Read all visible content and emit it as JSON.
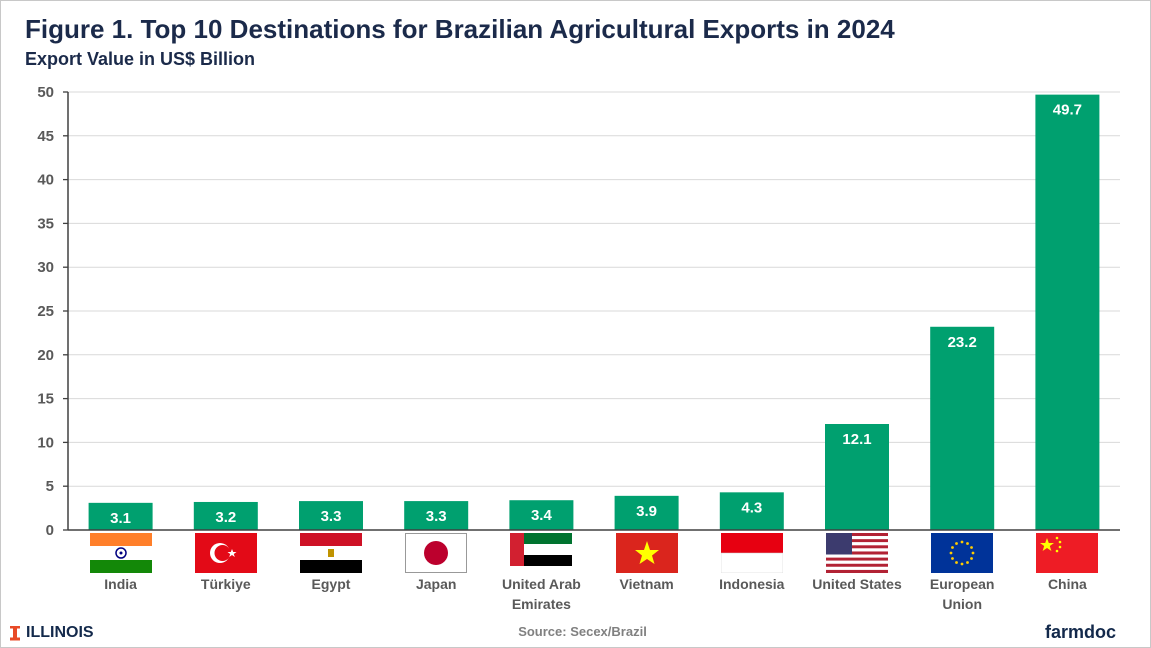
{
  "title": "Figure 1. Top 10 Destinations for Brazilian Agricultural Exports in 2024",
  "subtitle": "Export Value in US$ Billion",
  "source": "Source: Secex/Brazil",
  "logo_left": "ILLINOIS",
  "logo_right": "farmdoc",
  "colors": {
    "bar": "#00a06f",
    "title": "#1b2a4a",
    "grid": "#d9d9d9"
  },
  "chart_data": {
    "type": "bar",
    "title": "Figure 1. Top 10 Destinations for Brazilian Agricultural Exports in 2024",
    "ylabel": "Export Value in US$ Billion",
    "xlabel": "",
    "ylim": [
      0,
      50
    ],
    "yticks": [
      0,
      5,
      10,
      15,
      20,
      25,
      30,
      35,
      40,
      45,
      50
    ],
    "grid": true,
    "categories": [
      "India",
      "Türkiye",
      "Egypt",
      "Japan",
      "United Arab Emirates",
      "Vietnam",
      "Indonesia",
      "United States",
      "European Union",
      "China"
    ],
    "category_lines": [
      [
        "India"
      ],
      [
        "Türkiye"
      ],
      [
        "Egypt"
      ],
      [
        "Japan"
      ],
      [
        "United Arab",
        "Emirates"
      ],
      [
        "Vietnam"
      ],
      [
        "Indonesia"
      ],
      [
        "United States"
      ],
      [
        "European",
        "Union"
      ],
      [
        "China"
      ]
    ],
    "flags": [
      "india-flag-icon",
      "turkey-flag-icon",
      "egypt-flag-icon",
      "japan-flag-icon",
      "uae-flag-icon",
      "vietnam-flag-icon",
      "indonesia-flag-icon",
      "usa-flag-icon",
      "eu-flag-icon",
      "china-flag-icon"
    ],
    "values": [
      3.1,
      3.2,
      3.3,
      3.3,
      3.4,
      3.9,
      4.3,
      12.1,
      23.2,
      49.7
    ],
    "data_labels": [
      "3.1",
      "3.2",
      "3.3",
      "3.3",
      "3.4",
      "3.9",
      "4.3",
      "12.1",
      "23.2",
      "49.7"
    ]
  }
}
